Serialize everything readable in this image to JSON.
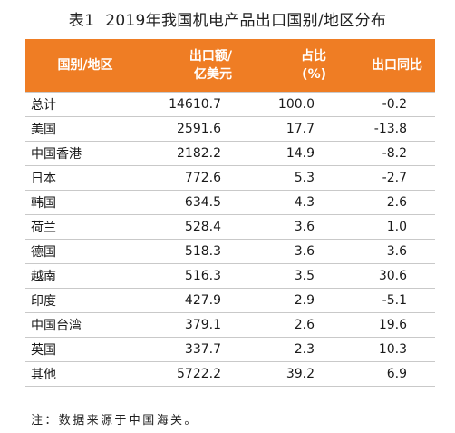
{
  "caption": {
    "number": "表1",
    "title": "2019年我国机电产品出口国别/地区分布"
  },
  "header": {
    "region": "国别/地区",
    "value_line1": "出口额/",
    "value_line2": "亿美元",
    "share_line1": "占比",
    "share_line2": "(%)",
    "yoy": "出口同比"
  },
  "rows": [
    {
      "name": "总计",
      "value": "14610.7",
      "share": "100.0",
      "yoy": "-0.2"
    },
    {
      "name": "美国",
      "value": "2591.6",
      "share": "17.7",
      "yoy": "-13.8"
    },
    {
      "name": "中国香港",
      "value": "2182.2",
      "share": "14.9",
      "yoy": "-8.2"
    },
    {
      "name": "日本",
      "value": "772.6",
      "share": "5.3",
      "yoy": "-2.7"
    },
    {
      "name": "韩国",
      "value": "634.5",
      "share": "4.3",
      "yoy": "2.6"
    },
    {
      "name": "荷兰",
      "value": "528.4",
      "share": "3.6",
      "yoy": "1.0"
    },
    {
      "name": "德国",
      "value": "518.3",
      "share": "3.6",
      "yoy": "3.6"
    },
    {
      "name": "越南",
      "value": "516.3",
      "share": "3.5",
      "yoy": "30.6"
    },
    {
      "name": "印度",
      "value": "427.9",
      "share": "2.9",
      "yoy": "-5.1"
    },
    {
      "name": "中国台湾",
      "value": "379.1",
      "share": "2.6",
      "yoy": "19.6"
    },
    {
      "name": "英国",
      "value": "337.7",
      "share": "2.3",
      "yoy": "10.3"
    },
    {
      "name": "其他",
      "value": "5722.2",
      "share": "39.2",
      "yoy": "6.9"
    }
  ],
  "note": "注：数据来源于中国海关。",
  "colors": {
    "header_bg": "#ef7d24",
    "header_text": "#ffffff",
    "rule": "#c9c9c9"
  }
}
